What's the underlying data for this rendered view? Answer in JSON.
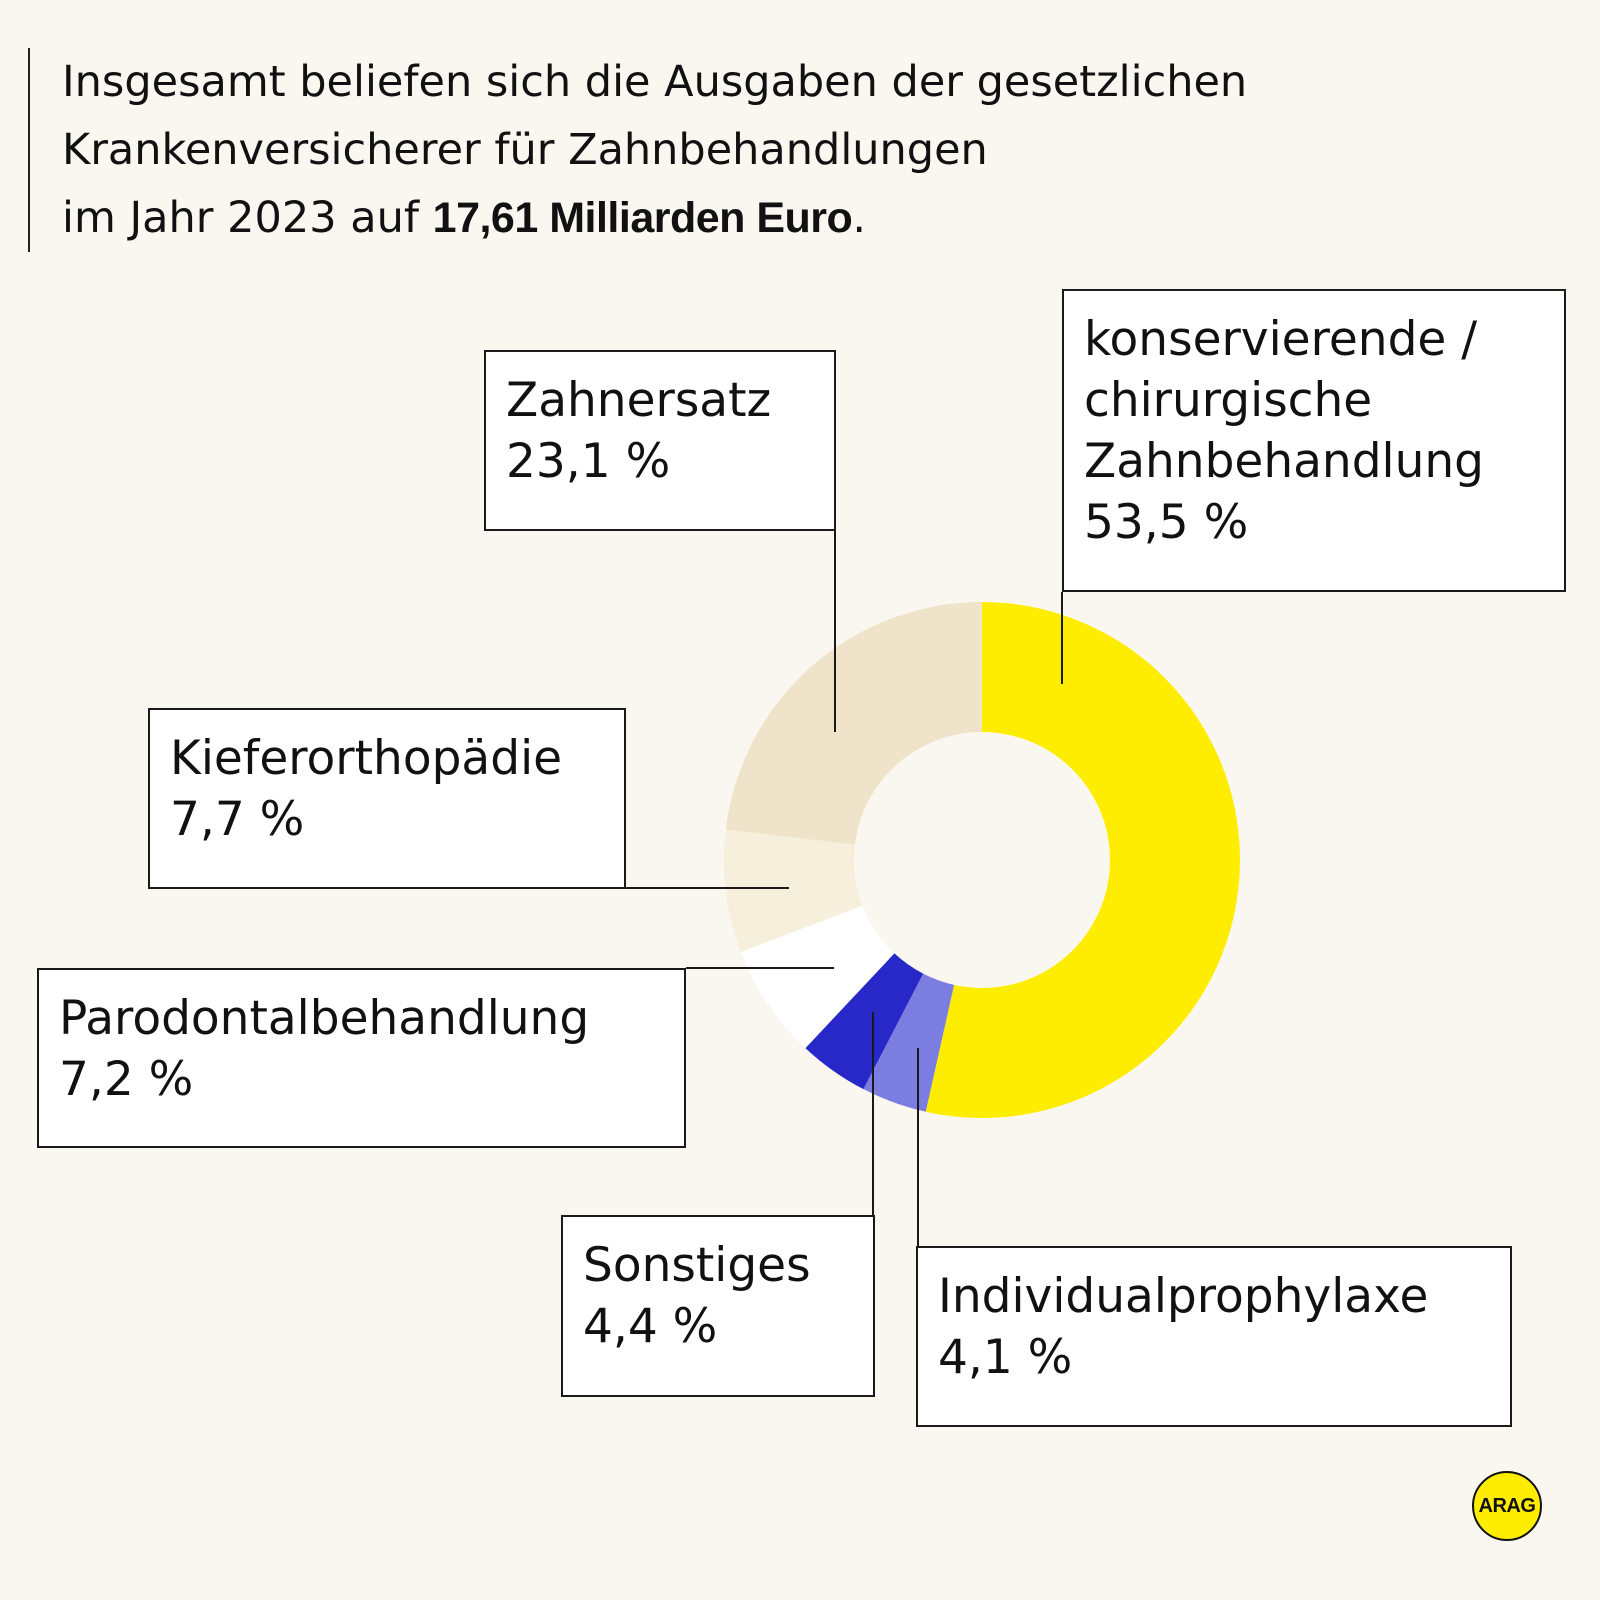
{
  "headline": {
    "line1": "Insgesamt beliefen sich die Ausgaben der gesetzlichen",
    "line2": "Krankenversicherer für Zahnbehandlungen",
    "line3_prefix": "im Jahr 2023 auf ",
    "line3_bold": "17,61 Milliarden Euro",
    "line3_suffix": "."
  },
  "chart_data": {
    "type": "pie",
    "style": "donut",
    "unit": "%",
    "slices": [
      {
        "name": "konservierende / chirurgische Zahnbehandlung",
        "name_lines": [
          "konservierende /",
          "chirurgische",
          "Zahnbehandlung"
        ],
        "value": 53.5,
        "value_label": "53,5 %",
        "color": "#ffed00"
      },
      {
        "name": "Individualprophylaxe",
        "name_lines": [
          "Individualprophylaxe"
        ],
        "value": 4.1,
        "value_label": "4,1 %",
        "color": "#7b7de0"
      },
      {
        "name": "Sonstiges",
        "name_lines": [
          "Sonstiges"
        ],
        "value": 4.4,
        "value_label": "4,4 %",
        "color": "#2828c8"
      },
      {
        "name": "Parodontalbehandlung",
        "name_lines": [
          "Parodontalbehandlung"
        ],
        "value": 7.2,
        "value_label": "7,2 %",
        "color": "#ffffff"
      },
      {
        "name": "Kieferorthopädie",
        "name_lines": [
          "Kieferorthopädie"
        ],
        "value": 7.7,
        "value_label": "7,7 %",
        "color": "#f6efdc"
      },
      {
        "name": "Zahnersatz",
        "name_lines": [
          "Zahnersatz"
        ],
        "value": 23.1,
        "value_label": "23,1 %",
        "color": "#efe4c9"
      }
    ]
  },
  "logo": {
    "text": "ARAG",
    "color": "#ffed00"
  }
}
